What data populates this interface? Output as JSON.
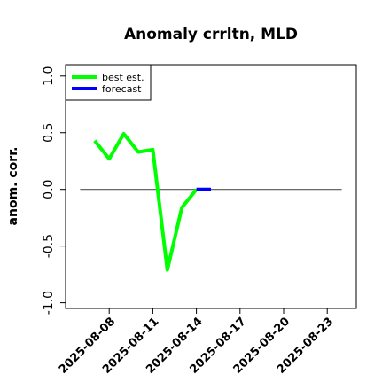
{
  "chart_data": {
    "type": "line",
    "title": "Anomaly crrltn, MLD",
    "xlabel": "",
    "ylabel": "anom. corr.",
    "xlim": [
      "2025-08-05",
      "2025-08-25"
    ],
    "ylim": [
      -1.05,
      1.1
    ],
    "yticks": [
      -1.0,
      -0.5,
      0.0,
      0.5,
      1.0
    ],
    "ytick_labels": [
      "-1.0",
      "-0.5",
      "0.0",
      "0.5",
      "1.0"
    ],
    "xticks": [
      "2025-08-08",
      "2025-08-11",
      "2025-08-14",
      "2025-08-17",
      "2025-08-20",
      "2025-08-23"
    ],
    "highlight_tick": "2025-08-14",
    "highlight_color": "#228b22",
    "reference_line": {
      "y": 0.0,
      "x_from": "2025-08-06",
      "x_to": "2025-08-24",
      "color": "#555555"
    },
    "legend": {
      "placement": "top-left"
    },
    "series": [
      {
        "name": "best est.",
        "color": "#00ff00",
        "x": [
          "2025-08-07",
          "2025-08-08",
          "2025-08-09",
          "2025-08-10",
          "2025-08-11",
          "2025-08-12",
          "2025-08-13",
          "2025-08-14"
        ],
        "y": [
          0.43,
          0.27,
          0.49,
          0.33,
          0.35,
          -0.71,
          -0.16,
          0.0
        ]
      },
      {
        "name": "forecast",
        "color": "#0000ff",
        "x": [
          "2025-08-14",
          "2025-08-15"
        ],
        "y": [
          0.0,
          0.0
        ]
      }
    ]
  }
}
